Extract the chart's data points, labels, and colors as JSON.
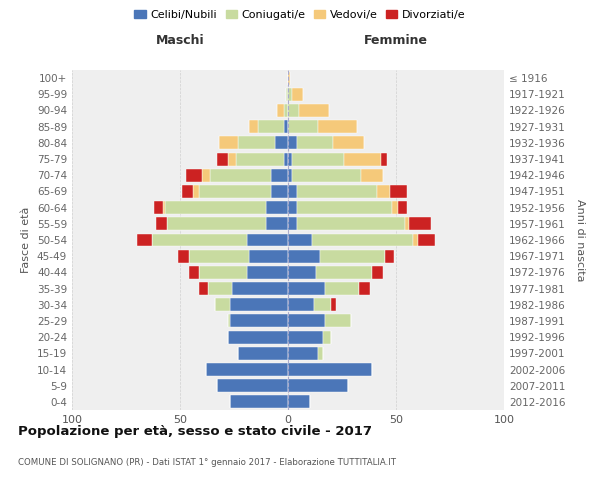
{
  "age_groups": [
    "100+",
    "95-99",
    "90-94",
    "85-89",
    "80-84",
    "75-79",
    "70-74",
    "65-69",
    "60-64",
    "55-59",
    "50-54",
    "45-49",
    "40-44",
    "35-39",
    "30-34",
    "25-29",
    "20-24",
    "15-19",
    "10-14",
    "5-9",
    "0-4"
  ],
  "birth_years": [
    "≤ 1916",
    "1917-1921",
    "1922-1926",
    "1927-1931",
    "1932-1936",
    "1937-1941",
    "1942-1946",
    "1947-1951",
    "1952-1956",
    "1957-1961",
    "1962-1966",
    "1967-1971",
    "1972-1976",
    "1977-1981",
    "1982-1986",
    "1987-1991",
    "1992-1996",
    "1997-2001",
    "2002-2006",
    "2007-2011",
    "2012-2016"
  ],
  "colors": {
    "celibi": "#4b76b8",
    "coniugati": "#c8dba0",
    "vedovi": "#f5c97a",
    "divorziati": "#cc2222",
    "background": "#ffffff",
    "plot_bg": "#efefef",
    "grid": "#d0d0d0"
  },
  "maschi": {
    "celibi": [
      0,
      0,
      0,
      2,
      6,
      2,
      8,
      8,
      10,
      10,
      19,
      18,
      19,
      26,
      27,
      27,
      28,
      23,
      38,
      33,
      27
    ],
    "coniugati": [
      0,
      1,
      2,
      12,
      17,
      22,
      28,
      33,
      47,
      46,
      44,
      28,
      22,
      11,
      7,
      1,
      0,
      0,
      0,
      0,
      0
    ],
    "vedovi": [
      0,
      0,
      3,
      4,
      9,
      4,
      4,
      3,
      1,
      0,
      0,
      0,
      0,
      0,
      0,
      0,
      0,
      0,
      0,
      0,
      0
    ],
    "divorziati": [
      0,
      0,
      0,
      0,
      0,
      5,
      7,
      5,
      4,
      5,
      7,
      5,
      5,
      4,
      0,
      0,
      0,
      0,
      0,
      0,
      0
    ]
  },
  "femmine": {
    "celibi": [
      0,
      0,
      0,
      0,
      4,
      2,
      2,
      4,
      4,
      4,
      11,
      15,
      13,
      17,
      12,
      17,
      16,
      14,
      39,
      28,
      10
    ],
    "coniugati": [
      0,
      2,
      5,
      14,
      17,
      24,
      32,
      37,
      44,
      50,
      47,
      30,
      26,
      16,
      8,
      12,
      4,
      2,
      0,
      0,
      0
    ],
    "vedovi": [
      1,
      5,
      14,
      18,
      14,
      17,
      10,
      6,
      3,
      2,
      2,
      0,
      0,
      0,
      0,
      0,
      0,
      0,
      0,
      0,
      0
    ],
    "divorziati": [
      0,
      0,
      0,
      0,
      0,
      3,
      0,
      8,
      4,
      10,
      8,
      4,
      5,
      5,
      2,
      0,
      0,
      0,
      0,
      0,
      0
    ]
  },
  "title": "Popolazione per età, sesso e stato civile - 2017",
  "subtitle": "COMUNE DI SOLIGNANO (PR) - Dati ISTAT 1° gennaio 2017 - Elaborazione TUTTITALIA.IT",
  "ylabel_left": "Fasce di età",
  "ylabel_right": "Anni di nascita",
  "xlabel_left": "Maschi",
  "xlabel_right": "Femmine",
  "legend_labels": [
    "Celibi/Nubili",
    "Coniugati/e",
    "Vedovi/e",
    "Divorziati/e"
  ],
  "xlim": 100
}
